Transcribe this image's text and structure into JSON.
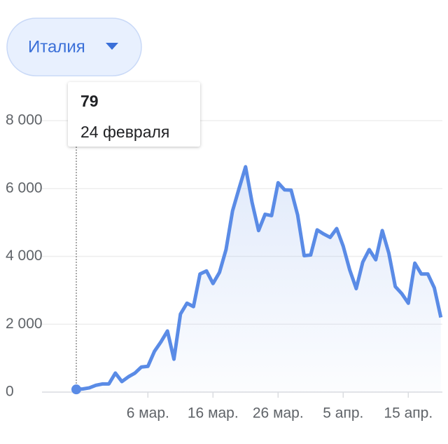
{
  "chart_data": {
    "type": "line",
    "selector": "Италия",
    "tooltip": {
      "value": 79,
      "date": "24 февраля"
    },
    "categories": [
      "",
      null,
      null,
      null,
      null,
      null,
      null,
      null,
      null,
      null,
      null,
      "6 мар.",
      null,
      null,
      null,
      null,
      null,
      null,
      null,
      null,
      null,
      "16 мар.",
      null,
      null,
      null,
      null,
      null,
      null,
      null,
      null,
      null,
      "26 мар.",
      null,
      null,
      null,
      null,
      null,
      null,
      null,
      null,
      null,
      "5 апр.",
      null,
      null,
      null,
      null,
      null,
      null,
      null,
      null,
      null,
      "15 апр.",
      null,
      null,
      null,
      null,
      null
    ],
    "series": [
      {
        "name": "Италия",
        "color": "#5a8be6",
        "values": [
          79,
          93,
          125,
          200,
          240,
          240,
          560,
          310,
          450,
          560,
          740,
          760,
          1200,
          1480,
          1800,
          970,
          2300,
          2620,
          2520,
          3480,
          3570,
          3200,
          3530,
          4200,
          5340,
          6000,
          6640,
          5590,
          4760,
          5240,
          5200,
          6170,
          5960,
          5950,
          5220,
          4020,
          4040,
          4780,
          4660,
          4560,
          4820,
          4300,
          3600,
          3050,
          3830,
          4200,
          3900,
          4760,
          4100,
          3110,
          2900,
          2620,
          3800,
          3480,
          3480,
          3070,
          2200
        ]
      }
    ],
    "ylim": [
      0,
      8000
    ],
    "yticks": [
      0,
      {
        "value": 2000,
        "label": "2 000"
      },
      {
        "value": 4000,
        "label": "4 000"
      },
      {
        "value": 6000,
        "label": "6 000"
      },
      {
        "value": 8000,
        "label": "8 000"
      }
    ],
    "grid": true
  }
}
